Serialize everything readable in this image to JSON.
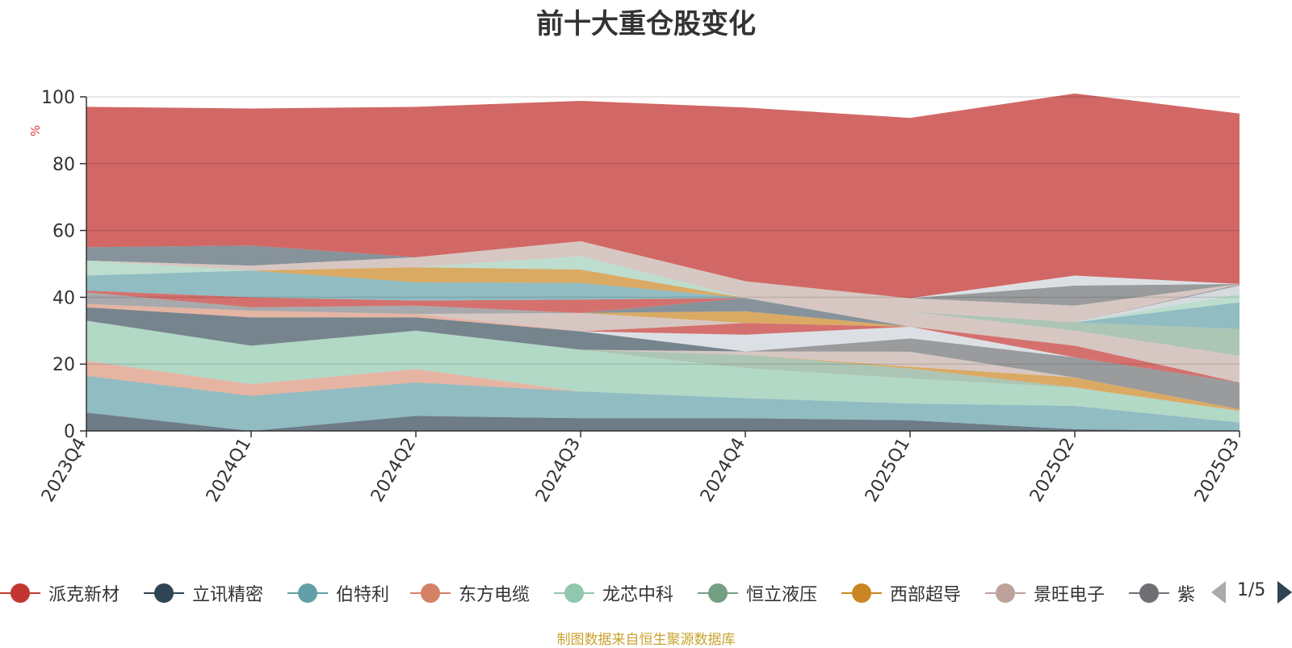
{
  "chart_data": {
    "type": "area",
    "title": "前十大重仓股变化",
    "ylabel": "%",
    "ylim": [
      0,
      100
    ],
    "yticks": [
      0,
      20,
      40,
      60,
      80,
      100
    ],
    "categories": [
      "2023Q4",
      "2024Q1",
      "2024Q2",
      "2024Q3",
      "2024Q4",
      "2025Q1",
      "2025Q2",
      "2025Q3"
    ],
    "grid": true,
    "legend_position": "bottom",
    "source_note": "制图数据来自恒生聚源数据库",
    "series": [
      {
        "color": "#2f4554",
        "opacity": 0.7,
        "values": [
          5.5,
          0,
          4.5,
          3.8,
          3.8,
          3.2,
          0.5,
          0
        ]
      },
      {
        "color": "#61a0a8",
        "opacity": 0.7,
        "values": [
          11,
          10.5,
          10,
          8,
          6,
          5,
          7,
          2.5
        ]
      },
      {
        "color": "#d48265",
        "opacity": 0.6,
        "values": [
          4.5,
          3.5,
          4,
          0,
          0,
          0,
          0,
          0
        ]
      },
      {
        "color": "#91c7ae",
        "opacity": 0.7,
        "values": [
          12,
          11.5,
          11.5,
          12.5,
          9,
          7.5,
          5.5,
          3.5
        ]
      },
      {
        "color": "#749f83",
        "opacity": 0.6,
        "values": [
          0,
          0,
          0,
          0,
          4,
          3,
          0,
          0
        ]
      },
      {
        "color": "#ca8622",
        "opacity": 0.7,
        "values": [
          0,
          0,
          0,
          0,
          0,
          0.5,
          3,
          0.5
        ]
      },
      {
        "color": "#bda29a",
        "opacity": 0.6,
        "values": [
          0,
          0,
          0,
          0,
          1,
          4.5,
          0,
          0
        ]
      },
      {
        "color": "#6e7074",
        "opacity": 0.7,
        "values": [
          0,
          0,
          0,
          0,
          0,
          4,
          6,
          8
        ]
      },
      {
        "color": "#546570",
        "opacity": 0.8,
        "values": [
          4,
          8.5,
          4,
          5.5,
          0,
          0,
          0,
          0
        ]
      },
      {
        "color": "#c4ccd3",
        "opacity": 0.6,
        "values": [
          0,
          0,
          0,
          0,
          5,
          3.5,
          0,
          0
        ]
      },
      {
        "color": "#c23531",
        "opacity": 0.7,
        "values": [
          0,
          0,
          0,
          0,
          3.5,
          0,
          3.5,
          0
        ]
      },
      {
        "color": "#d48265",
        "opacity": 0.6,
        "values": [
          1,
          2,
          1,
          0,
          0,
          0,
          0,
          0
        ]
      },
      {
        "color": "#bda29a",
        "opacity": 0.6,
        "values": [
          0,
          0,
          0,
          5.5,
          0,
          0,
          0,
          0
        ]
      },
      {
        "color": "#ca8622",
        "opacity": 0.7,
        "values": [
          0,
          0,
          0,
          0,
          3.5,
          0,
          0,
          0
        ]
      },
      {
        "color": "#546570",
        "opacity": 0.7,
        "values": [
          0,
          0,
          0,
          0,
          4,
          0,
          0,
          0
        ]
      },
      {
        "color": "#bda29a",
        "opacity": 0.6,
        "values": [
          0,
          0,
          0,
          0,
          0,
          4.5,
          4.5,
          8
        ]
      },
      {
        "color": "#749f83",
        "opacity": 0.6,
        "values": [
          0,
          0,
          0,
          0,
          0,
          0,
          2.5,
          8
        ]
      },
      {
        "color": "#61a0a8",
        "opacity": 0.7,
        "values": [
          0,
          0,
          0,
          0,
          0,
          0,
          0,
          8
        ]
      },
      {
        "color": "#91c7ae",
        "opacity": 0.6,
        "values": [
          0,
          0,
          0,
          0,
          0,
          0,
          0,
          2.5
        ]
      },
      {
        "color": "#c4ccd3",
        "opacity": 0.7,
        "values": [
          0,
          0,
          0,
          0,
          0,
          0,
          0,
          2.5
        ]
      },
      {
        "color": "#6e7074",
        "opacity": 0.6,
        "values": [
          0,
          0,
          0,
          0,
          0,
          0,
          0,
          0.5
        ]
      },
      {
        "color": "#6e7074",
        "opacity": 0.6,
        "values": [
          3.5,
          1,
          2.5,
          0,
          0,
          0,
          0,
          0
        ]
      },
      {
        "color": "#c23531",
        "opacity": 0.7,
        "values": [
          0.5,
          3,
          1.5,
          4,
          0,
          0,
          0,
          0
        ]
      },
      {
        "color": "#61a0a8",
        "opacity": 0.7,
        "values": [
          4.5,
          8,
          5.5,
          5,
          0,
          0,
          0,
          0
        ]
      },
      {
        "color": "#ca8622",
        "opacity": 0.7,
        "values": [
          0,
          0,
          4.5,
          4,
          0,
          0,
          0,
          0
        ]
      },
      {
        "color": "#91c7ae",
        "opacity": 0.6,
        "values": [
          4.5,
          0,
          0,
          4,
          0,
          0,
          0,
          0
        ]
      },
      {
        "color": "#bda29a",
        "opacity": 0.6,
        "values": [
          0,
          1.5,
          3,
          4.5,
          1,
          0,
          0,
          0
        ]
      },
      {
        "color": "#bda29a",
        "opacity": 0.6,
        "values": [
          0,
          0,
          0,
          0,
          4,
          4,
          5,
          0
        ]
      },
      {
        "color": "#546570",
        "opacity": 0.7,
        "values": [
          4,
          6,
          0,
          0,
          0,
          0,
          0,
          0
        ]
      },
      {
        "color": "#6e7074",
        "opacity": 0.7,
        "values": [
          0,
          0,
          0,
          0,
          0,
          0,
          6,
          0
        ]
      },
      {
        "color": "#c4ccd3",
        "opacity": 0.6,
        "values": [
          0,
          0,
          0,
          0,
          0,
          0,
          3,
          0
        ]
      },
      {
        "color": "#c23531",
        "opacity": 0.75,
        "values": [
          42,
          41,
          45,
          42,
          52,
          54,
          54.5,
          51
        ]
      }
    ]
  },
  "legend": {
    "items": [
      {
        "label": "派克新材",
        "color": "#c23531"
      },
      {
        "label": "立讯精密",
        "color": "#2f4554"
      },
      {
        "label": "伯特利",
        "color": "#61a0a8"
      },
      {
        "label": "东方电缆",
        "color": "#d48265"
      },
      {
        "label": "龙芯中科",
        "color": "#91c7ae"
      },
      {
        "label": "恒立液压",
        "color": "#749f83"
      },
      {
        "label": "西部超导",
        "color": "#ca8622"
      },
      {
        "label": "景旺电子",
        "color": "#bda29a"
      },
      {
        "label": "紫",
        "color": "#6e7074"
      }
    ],
    "pager": "1/5",
    "prev_icon": "triangle-left-icon",
    "next_icon": "triangle-right-icon"
  }
}
